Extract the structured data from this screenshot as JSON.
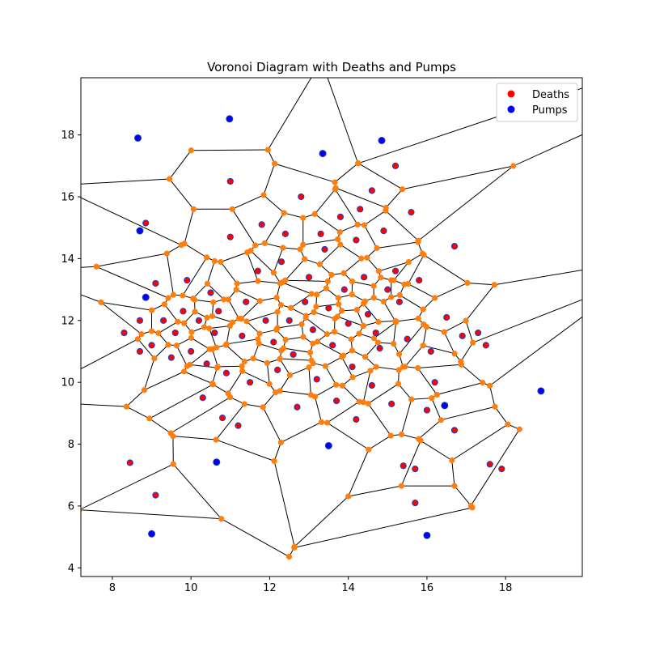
{
  "chart_data": {
    "type": "scatter",
    "title": "Voronoi Diagram with Deaths and Pumps",
    "xlabel": "",
    "ylabel": "",
    "xlim": [
      7.2,
      19.95
    ],
    "ylim": [
      3.72,
      19.85
    ],
    "x_ticks": [
      8,
      10,
      12,
      14,
      16,
      18
    ],
    "y_ticks": [
      4,
      6,
      8,
      10,
      12,
      14,
      16,
      18
    ],
    "grid": false,
    "legend_position": "top-right",
    "colors": {
      "deaths": "#ff0000",
      "pumps": "#0000ff",
      "voronoi_vertices": "#ff7f0e",
      "voronoi_edges": "#000000"
    },
    "series": [
      {
        "name": "Deaths",
        "color": "#ff0000",
        "points": [
          [
            8.3,
            11.6
          ],
          [
            8.45,
            7.4
          ],
          [
            8.7,
            11.0
          ],
          [
            8.7,
            12.0
          ],
          [
            8.85,
            15.15
          ],
          [
            9.0,
            11.2
          ],
          [
            9.1,
            6.35
          ],
          [
            9.1,
            13.2
          ],
          [
            9.3,
            12.0
          ],
          [
            9.5,
            10.8
          ],
          [
            9.6,
            11.6
          ],
          [
            9.8,
            12.3
          ],
          [
            10.0,
            11.0
          ],
          [
            10.2,
            12.0
          ],
          [
            10.3,
            9.5
          ],
          [
            10.4,
            10.6
          ],
          [
            10.5,
            12.9
          ],
          [
            10.7,
            12.3
          ],
          [
            10.8,
            8.85
          ],
          [
            10.9,
            10.3
          ],
          [
            11.0,
            16.5
          ],
          [
            11.0,
            14.7
          ],
          [
            11.2,
            8.6
          ],
          [
            11.3,
            11.5
          ],
          [
            11.5,
            10.0
          ],
          [
            11.7,
            13.6
          ],
          [
            11.8,
            15.1
          ],
          [
            11.9,
            12.0
          ],
          [
            12.1,
            11.3
          ],
          [
            12.2,
            10.4
          ],
          [
            12.3,
            13.9
          ],
          [
            12.4,
            14.8
          ],
          [
            12.6,
            10.9
          ],
          [
            12.7,
            9.2
          ],
          [
            12.8,
            16.0
          ],
          [
            12.9,
            12.6
          ],
          [
            13.0,
            13.4
          ],
          [
            13.1,
            11.7
          ],
          [
            13.2,
            10.1
          ],
          [
            13.4,
            14.3
          ],
          [
            13.5,
            12.4
          ],
          [
            13.6,
            11.2
          ],
          [
            13.7,
            9.4
          ],
          [
            13.8,
            15.35
          ],
          [
            13.9,
            13.0
          ],
          [
            14.0,
            11.9
          ],
          [
            14.1,
            10.5
          ],
          [
            14.2,
            8.8
          ],
          [
            14.3,
            15.6
          ],
          [
            14.4,
            13.4
          ],
          [
            14.5,
            12.2
          ],
          [
            14.6,
            9.9
          ],
          [
            14.6,
            16.2
          ],
          [
            14.8,
            11.1
          ],
          [
            14.9,
            14.9
          ],
          [
            15.0,
            13.0
          ],
          [
            15.1,
            9.3
          ],
          [
            15.2,
            17.0
          ],
          [
            15.3,
            12.6
          ],
          [
            15.4,
            7.3
          ],
          [
            15.5,
            11.4
          ],
          [
            15.6,
            15.5
          ],
          [
            15.7,
            6.1
          ],
          [
            15.7,
            7.2
          ],
          [
            15.8,
            13.3
          ],
          [
            16.0,
            9.1
          ],
          [
            16.1,
            11.0
          ],
          [
            16.2,
            10.0
          ],
          [
            16.5,
            12.1
          ],
          [
            16.7,
            14.4
          ],
          [
            16.7,
            8.45
          ],
          [
            16.9,
            11.5
          ],
          [
            17.3,
            11.6
          ],
          [
            17.5,
            11.2
          ],
          [
            17.6,
            7.35
          ],
          [
            17.9,
            7.2
          ],
          [
            14.2,
            14.6
          ],
          [
            13.3,
            14.8
          ],
          [
            12.5,
            12.0
          ],
          [
            11.4,
            12.6
          ],
          [
            10.6,
            11.6
          ],
          [
            9.9,
            13.3
          ],
          [
            15.2,
            13.6
          ],
          [
            14.7,
            11.6
          ]
        ]
      },
      {
        "name": "Pumps",
        "color": "#0000ff",
        "points": [
          [
            8.65,
            17.9
          ],
          [
            10.98,
            18.52
          ],
          [
            13.35,
            17.4
          ],
          [
            14.85,
            17.82
          ],
          [
            8.7,
            14.9
          ],
          [
            8.85,
            12.75
          ],
          [
            10.65,
            7.42
          ],
          [
            13.5,
            7.95
          ],
          [
            16.45,
            9.25
          ],
          [
            18.9,
            9.72
          ],
          [
            9.0,
            5.1
          ],
          [
            16.0,
            5.05
          ]
        ]
      }
    ],
    "voronoi_regions_note": ""
  }
}
